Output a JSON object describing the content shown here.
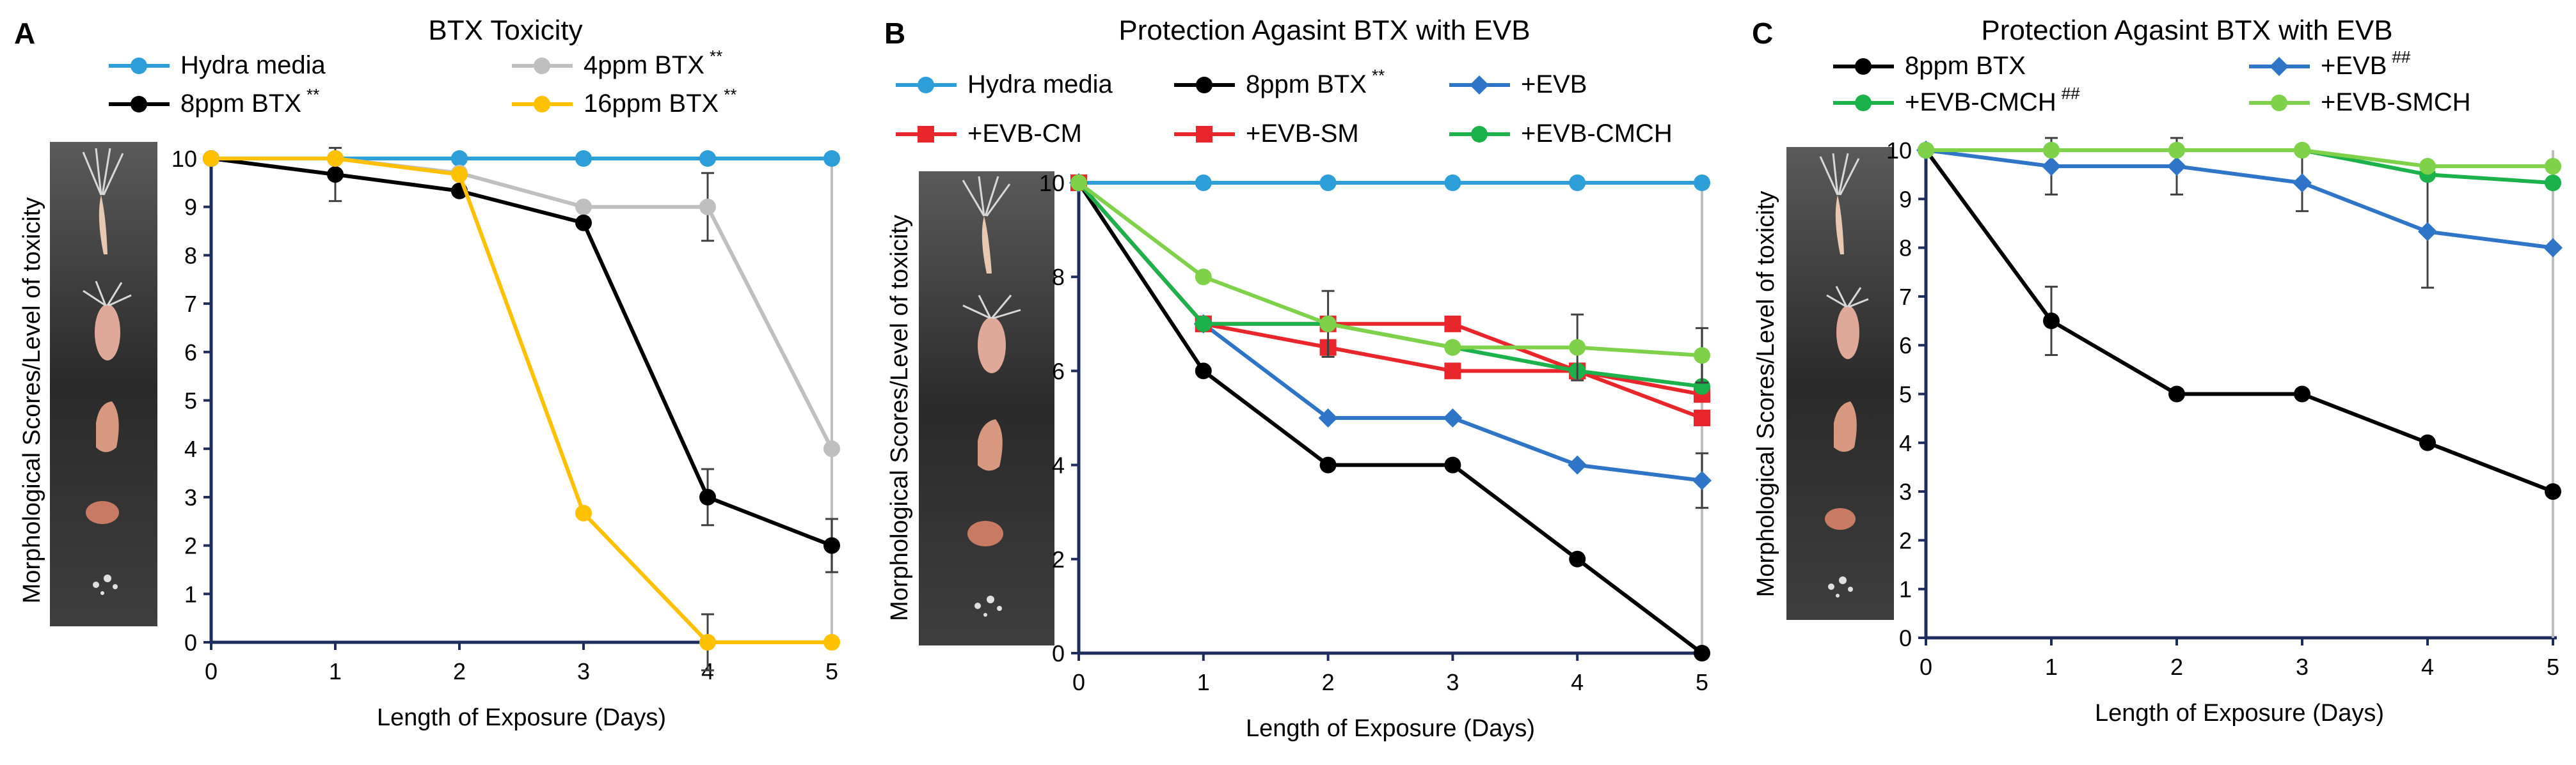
{
  "icons": {
    "hydra_strip_A": "hydra-morphology-strip",
    "hydra_strip_B": "hydra-morphology-strip",
    "hydra_strip_C": "hydra-morphology-strip"
  },
  "chart_data": [
    {
      "panel": "A",
      "type": "line",
      "title": "BTX Toxicity",
      "xlabel": "Length of Exposure (Days)",
      "ylabel": "Morphological Scores/Level of toxicity",
      "x": [
        0,
        1,
        2,
        3,
        4,
        5
      ],
      "xlim": [
        0,
        5
      ],
      "ylim": [
        0,
        10
      ],
      "yticks": [
        0,
        1,
        2,
        3,
        4,
        5,
        6,
        7,
        8,
        9,
        10
      ],
      "grid": false,
      "legend_position": "top",
      "series": [
        {
          "name": "Hydra media",
          "suffix": "",
          "color": "#2E9ED8",
          "marker": "circle",
          "values": [
            10,
            10,
            10,
            10,
            10,
            10
          ],
          "errors": [
            0,
            0,
            0,
            0,
            0,
            0
          ]
        },
        {
          "name": "4ppm BTX",
          "suffix": "**",
          "color": "#BFBFBF",
          "marker": "circle",
          "values": [
            10,
            10,
            9.7,
            9,
            9,
            4
          ],
          "errors": [
            0,
            0,
            0,
            0,
            0.7,
            0
          ]
        },
        {
          "name": "8ppm BTX",
          "suffix": "**",
          "color": "#000000",
          "marker": "circle",
          "values": [
            10,
            9.67,
            9.33,
            8.67,
            3,
            2
          ],
          "errors": [
            0,
            0.55,
            0,
            0,
            0.58,
            0.55
          ]
        },
        {
          "name": "16ppm BTX",
          "suffix": "**",
          "color": "#FFC000",
          "marker": "circle",
          "values": [
            10,
            10,
            9.67,
            2.67,
            0,
            0
          ],
          "errors": [
            0,
            0,
            0,
            0,
            0.58,
            0
          ]
        }
      ]
    },
    {
      "panel": "B",
      "type": "line",
      "title": "Protection Agasint BTX with EVB",
      "xlabel": "Length of Exposure (Days)",
      "ylabel": "Morphological Scores/Level of toxicity",
      "x": [
        0,
        1,
        2,
        3,
        4,
        5
      ],
      "xlim": [
        0,
        5
      ],
      "ylim": [
        0,
        10
      ],
      "yticks": [
        0,
        2,
        4,
        6,
        8,
        10
      ],
      "grid": false,
      "legend_position": "top",
      "series": [
        {
          "name": "Hydra media",
          "suffix": "",
          "color": "#2E9ED8",
          "marker": "circle",
          "values": [
            10,
            10,
            10,
            10,
            10,
            10
          ],
          "errors": [
            0,
            0,
            0,
            0,
            0,
            0
          ]
        },
        {
          "name": "8ppm BTX",
          "suffix": "**",
          "color": "#000000",
          "marker": "circle",
          "values": [
            10,
            6,
            4,
            4,
            2,
            0
          ],
          "errors": [
            0,
            0,
            0,
            0,
            0,
            0
          ]
        },
        {
          "name": "+EVB",
          "suffix": "",
          "color": "#2E75C8",
          "marker": "diamond",
          "values": [
            10,
            7,
            5,
            5,
            4,
            3.67
          ],
          "errors": [
            0,
            0,
            0,
            0,
            0,
            0.58
          ]
        },
        {
          "name": "+EVB-CM",
          "suffix": "",
          "color": "#E8262C",
          "marker": "square",
          "values": [
            10,
            7,
            6.5,
            6,
            6,
            5.5
          ],
          "errors": [
            0,
            0,
            0,
            0,
            0,
            0
          ]
        },
        {
          "name": "+EVB-SM",
          "suffix": "",
          "color": "#E8262C",
          "marker": "square",
          "values": [
            10,
            7,
            7,
            7,
            6,
            5
          ],
          "errors": [
            0,
            0,
            0.7,
            0,
            0,
            0
          ]
        },
        {
          "name": "+EVB-CMCH",
          "suffix": "",
          "color": "#1BB14B",
          "marker": "circle",
          "values": [
            10,
            7,
            7,
            6.5,
            6,
            5.67
          ],
          "errors": [
            0,
            0,
            0,
            0,
            0,
            0
          ]
        },
        {
          "name": "+EVB-SMCH",
          "suffix": "",
          "color": "#7FD14A",
          "marker": "circle",
          "values": [
            10,
            8,
            7,
            6.5,
            6.5,
            6.33
          ],
          "errors": [
            0,
            0,
            0,
            0,
            0.7,
            0.58
          ]
        }
      ]
    },
    {
      "panel": "C",
      "type": "line",
      "title": "Protection Agasint BTX with EVB",
      "xlabel": "Length of Exposure (Days)",
      "ylabel": "Morphological Scores/Level of toxicity",
      "x": [
        0,
        1,
        2,
        3,
        4,
        5
      ],
      "xlim": [
        0,
        5
      ],
      "ylim": [
        0,
        10
      ],
      "yticks": [
        0,
        1,
        2,
        3,
        4,
        5,
        6,
        7,
        8,
        9,
        10
      ],
      "grid": false,
      "legend_position": "top",
      "series": [
        {
          "name": "8ppm BTX",
          "suffix": "",
          "color": "#000000",
          "marker": "circle",
          "values": [
            10,
            6.5,
            5,
            5,
            4,
            3
          ],
          "errors": [
            0,
            0.7,
            0,
            0,
            0,
            0
          ]
        },
        {
          "name": "+EVB",
          "suffix": "##",
          "color": "#2E75C8",
          "marker": "diamond",
          "values": [
            10,
            9.67,
            9.67,
            9.33,
            8.33,
            8
          ],
          "errors": [
            0,
            0.58,
            0.58,
            0.58,
            1.15,
            0
          ]
        },
        {
          "name": "+EVB-CMCH",
          "suffix": "##",
          "color": "#1BB14B",
          "marker": "circle",
          "values": [
            10,
            10,
            10,
            10,
            9.5,
            9.33
          ],
          "errors": [
            0,
            0,
            0,
            0,
            0,
            0
          ]
        },
        {
          "name": "+EVB-SMCH",
          "suffix": "",
          "color": "#7FD14A",
          "marker": "circle",
          "values": [
            10,
            10,
            10,
            10,
            9.67,
            9.67
          ],
          "errors": [
            0,
            0,
            0,
            0,
            0,
            0
          ]
        }
      ]
    }
  ]
}
